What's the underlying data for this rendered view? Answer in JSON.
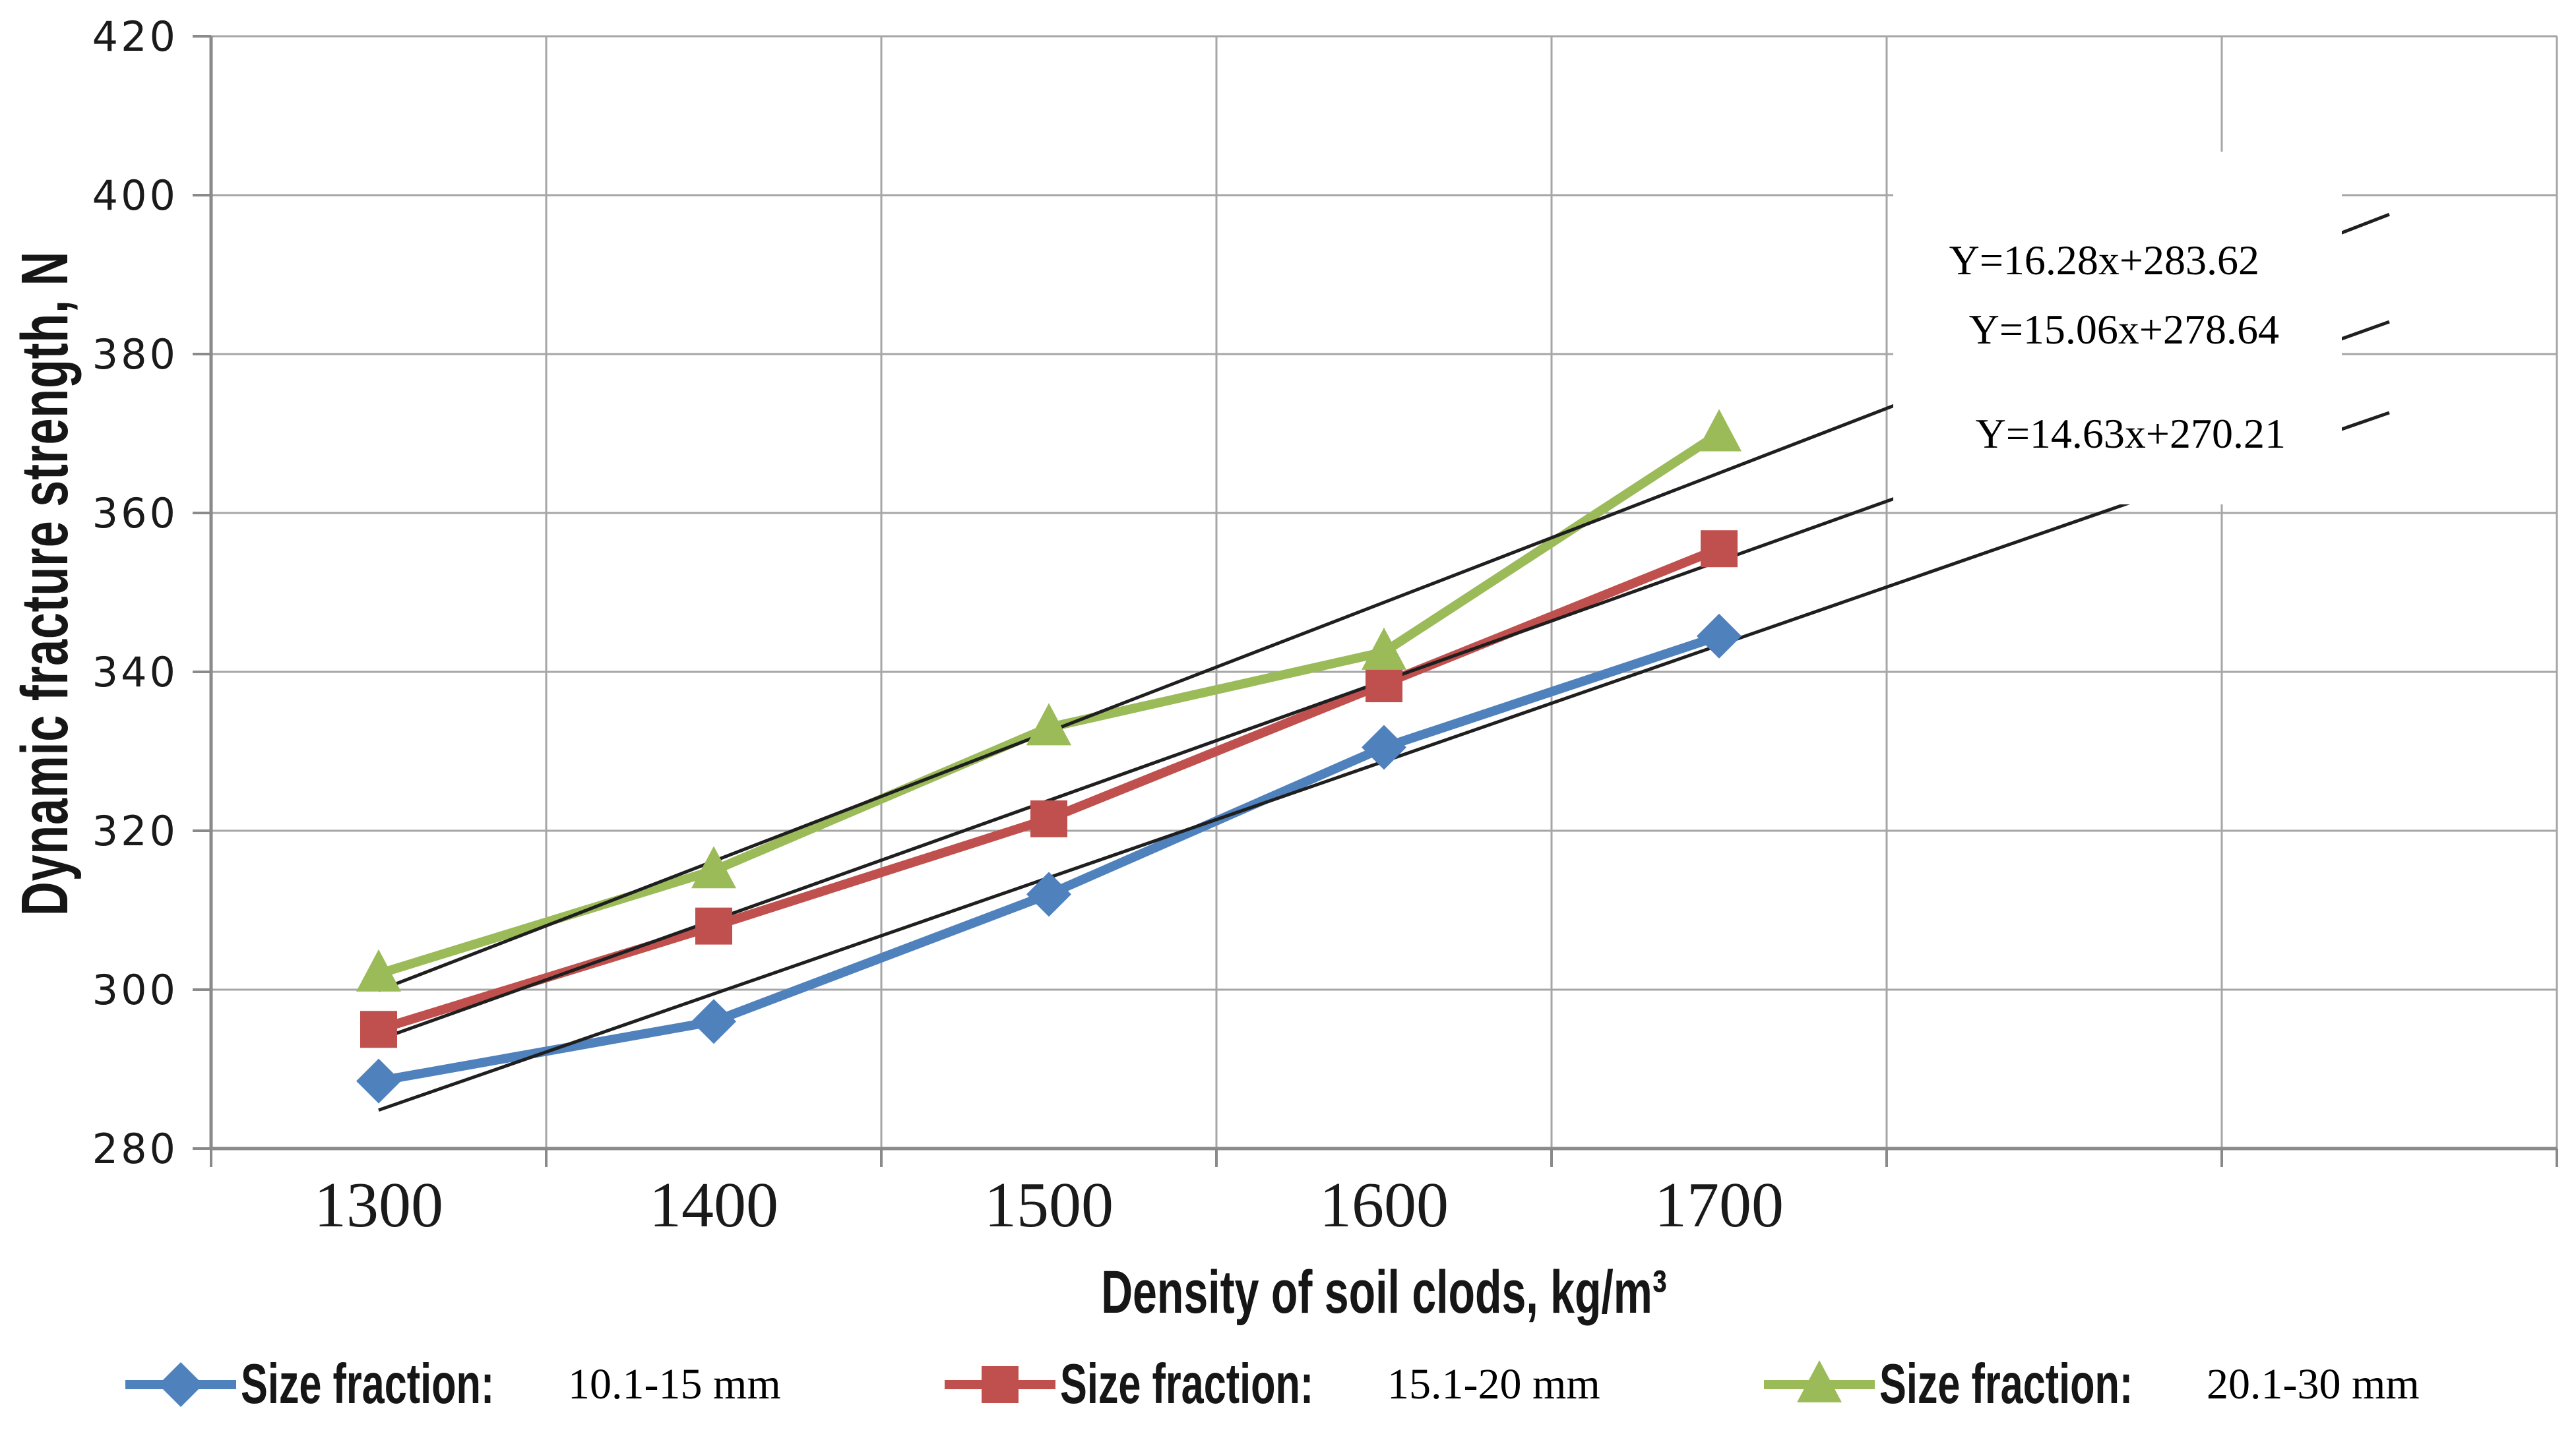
{
  "chart_data": {
    "type": "line",
    "title": "",
    "xlabel": "Density of soil clods, kg/m³",
    "ylabel": "Dynamic fracture strength, N",
    "categories": [
      1300,
      1400,
      1500,
      1600,
      1700
    ],
    "x_tick_labels": [
      "1300",
      "1400",
      "1500",
      "1600",
      "1700"
    ],
    "ylim": [
      280,
      420
    ],
    "y_tick_step": 20,
    "y_tick_labels": [
      "280",
      "300",
      "320",
      "340",
      "360",
      "380",
      "400",
      "420"
    ],
    "grid": true,
    "legend_position": "bottom",
    "extra_forecast_slots": 2,
    "series": [
      {
        "legend_label": "Size fraction:",
        "size_label": "10.1-15 mm",
        "marker": "diamond",
        "color": "#4F81BD",
        "values": [
          288.5,
          296,
          312,
          330.5,
          344.5
        ],
        "trendline": {
          "equation": "Y=14.63x+270.21",
          "slope": 14.63,
          "intercept": 270.21
        }
      },
      {
        "legend_label": "Size fraction:",
        "size_label": "15.1-20 mm",
        "marker": "square",
        "color": "#C0504D",
        "values": [
          295,
          308,
          321.5,
          338.5,
          355.5
        ],
        "trendline": {
          "equation": "Y=15.06x+278.64",
          "slope": 15.06,
          "intercept": 278.64
        }
      },
      {
        "legend_label": "Size fraction:",
        "size_label": "20.1-30 mm",
        "marker": "triangle",
        "color": "#9BBB59",
        "values": [
          302,
          315,
          333,
          342.5,
          370
        ],
        "trendline": {
          "equation": "Y=16.28x+283.62",
          "slope": 16.28,
          "intercept": 283.62
        }
      }
    ],
    "trendline_style": {
      "color": "#1f1f1f",
      "start_index": 1,
      "end_index": 7
    },
    "colors": {
      "gridline": "#a6a6a6",
      "axis": "#8a8a8a",
      "tick_text": "#1a1a1a",
      "background": "#ffffff"
    }
  }
}
